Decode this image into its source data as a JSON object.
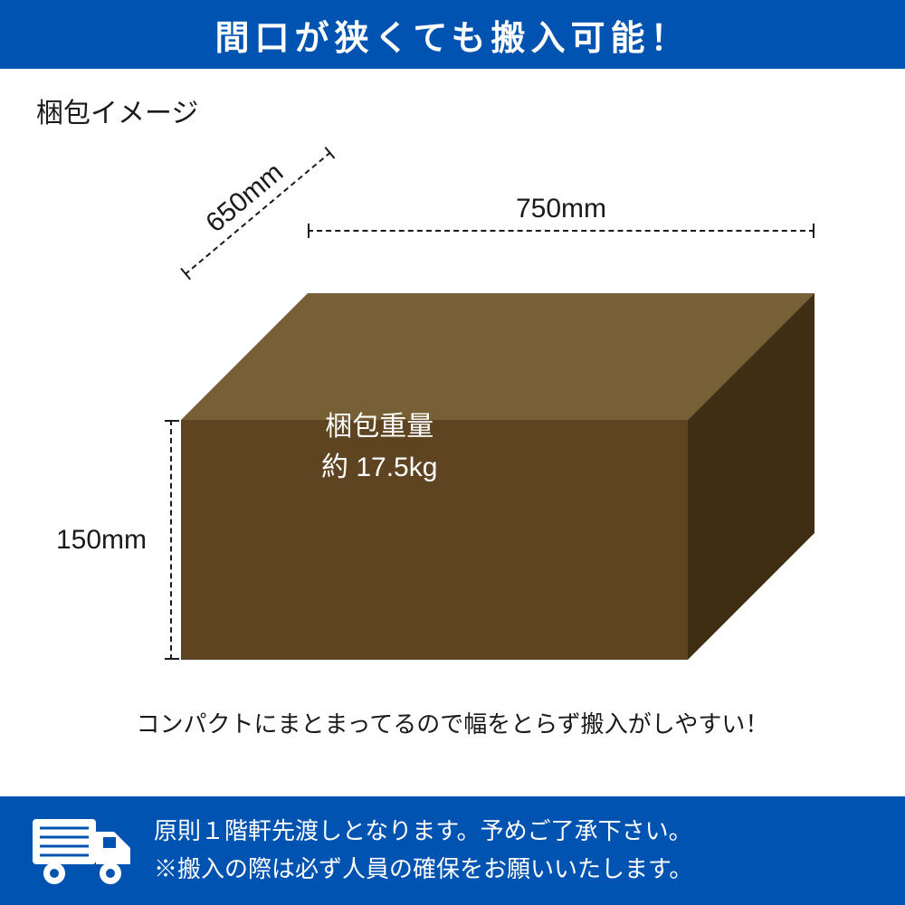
{
  "colors": {
    "banner_bg": "#0053b0",
    "banner_text": "#ffffff",
    "text": "#1a1a1a",
    "box_front": "#5e4420",
    "box_top": "#776035",
    "box_side": "#3f2e13",
    "bg": "#ffffff"
  },
  "banner_top": "間口が狭くても搬入可能！",
  "subtitle": "梱包イメージ",
  "dimensions": {
    "width_label": "750mm",
    "depth_label": "650mm",
    "height_label": "150mm"
  },
  "weight": {
    "line1": "梱包重量",
    "line2": "約 17.5kg"
  },
  "caption": "コンパクトにまとまってるので幅をとらず搬入がしやすい！",
  "delivery": {
    "line1": "原則１階軒先渡しとなります。予めご了承下さい。",
    "line2": "※搬入の際は必ず人員の確保をお願いいたします。"
  },
  "box_geometry": {
    "front_w": 560,
    "front_h": 265,
    "depth_dx": 140,
    "depth_dy": -140
  }
}
